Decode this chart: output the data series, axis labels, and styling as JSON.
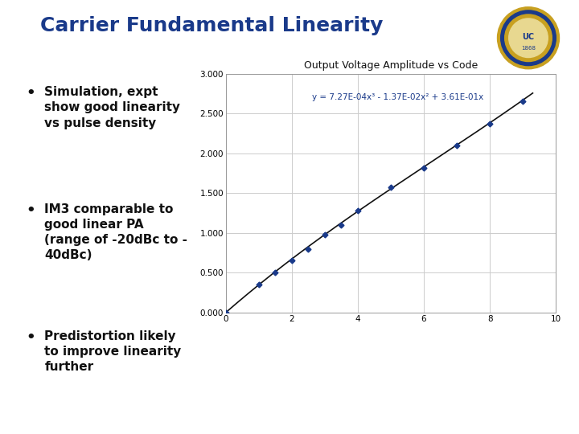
{
  "title": "Carrier Fundamental Linearity",
  "title_color": "#1a3a8a",
  "title_fontsize": 18,
  "slide_bg": "#ffffff",
  "bullet_points": [
    "Simulation, expt\nshow good linearity\nvs pulse density",
    "IM3 comparable to\ngood linear PA\n(range of -20dBc to -\n40dBc)",
    "Predistortion likely\nto improve linearity\nfurther"
  ],
  "bullet_color": "#111111",
  "bullet_fontsize": 11,
  "chart_title": "Output Voltage Amplitude vs Code",
  "chart_title_fontsize": 9,
  "chart_bg": "#ffffff",
  "equation": "y = 7.27E-04x³ - 1.37E-02x² + 3.61E-01x",
  "poly_coeffs": [
    0.000727,
    -0.0137,
    0.361,
    0.0
  ],
  "data_x": [
    0,
    1,
    1.5,
    2,
    2.5,
    3,
    3.5,
    4,
    5,
    6,
    7,
    8,
    9
  ],
  "data_y": [
    0.0,
    0.35,
    0.5,
    0.65,
    0.8,
    0.98,
    1.1,
    1.28,
    1.57,
    1.82,
    2.1,
    2.37,
    2.65
  ],
  "xlim": [
    0,
    10
  ],
  "ylim": [
    0.0,
    3.0
  ],
  "xticks": [
    0,
    2,
    4,
    6,
    8,
    10
  ],
  "yticks": [
    0.0,
    0.5,
    1.0,
    1.5,
    2.0,
    2.5,
    3.0
  ],
  "ytick_labels": [
    "0.000",
    "0.500",
    "1.000",
    "1.500",
    "2.000",
    "2.500",
    "3.000"
  ],
  "marker_color": "#1a3a8a",
  "line_color": "#111111",
  "grid_color": "#cccccc",
  "header_line_color": "#1a3a8a",
  "bottom_line_color": "#c8a020",
  "seal_outer": "#c8a020",
  "seal_inner": "#1a3a8a"
}
